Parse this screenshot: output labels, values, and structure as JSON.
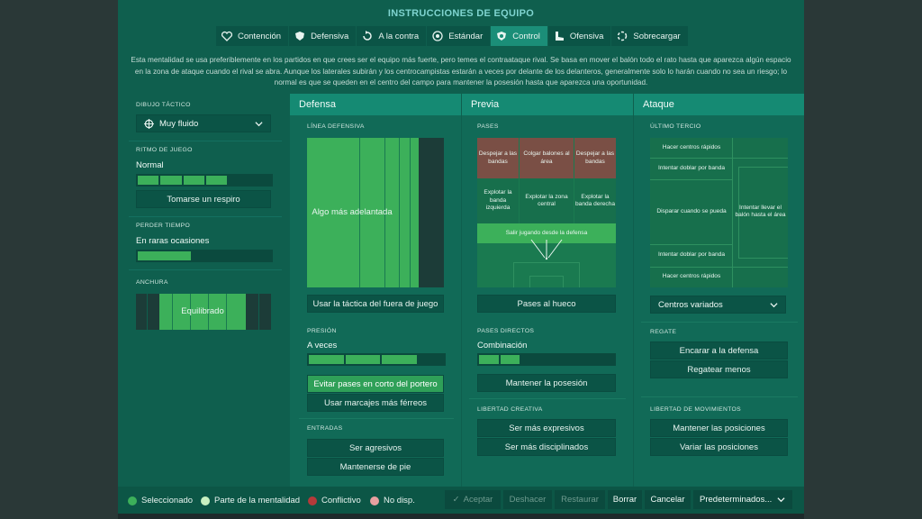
{
  "title": "INSTRUCCIONES DE EQUIPO",
  "tabs": [
    "Contención",
    "Defensiva",
    "A la contra",
    "Estándar",
    "Control",
    "Ofensiva",
    "Sobrecargar"
  ],
  "description": "Esta mentalidad se usa preferiblemente en los partidos en que crees ser el equipo más fuerte, pero temes el contraataque rival. Se basa en mover el balón todo el rato hasta que aparezca algún espacio en la zona de ataque cuando el rival se abra. Aunque los laterales subirán y los centrocampistas estarán a veces por delante de los delanteros, generalmente solo lo harán cuando no sea un riesgo; lo normal es que se queden en el centro del campo para mantener la posesión hasta que aparezca una oportunidad.",
  "left": {
    "formation_label": "DIBUJO TÁCTICO",
    "formation_value": "Muy fluido",
    "tempo_label": "RITMO DE JUEGO",
    "tempo_value": "Normal",
    "tempo_level": 0.67,
    "tempo_button": "Tomarse un respiro",
    "timewasting_label": "PERDER TIEMPO",
    "timewasting_value": "En raras ocasiones",
    "timewasting_level": 0.4,
    "width_label": "ANCHURA",
    "width_value": "Equilibrado"
  },
  "defense": {
    "title": "Defensa",
    "line_label": "LÍNEA DEFENSIVA",
    "line_value": "Algo más adelantada",
    "offside_button": "Usar la táctica del fuera de juego",
    "press_label": "PRESIÓN",
    "press_value": "A veces",
    "press_level": 0.8,
    "press_btn1": "Evitar pases en corto del portero",
    "press_btn2": "Usar marcajes más férreos",
    "tackle_label": "ENTRADAS",
    "tackle_btn1": "Ser agresivos",
    "tackle_btn2": "Mantenerse de pie"
  },
  "buildup": {
    "title": "Previa",
    "passes_label": "PASES",
    "zones": [
      "Despejar a las bandas",
      "Colgar balones al área",
      "Despejar a las bandas",
      "Explotar la banda izquierda",
      "Explotar la zona central",
      "Explotar la banda derecha",
      "Salir jugando desde la defensa"
    ],
    "through_button": "Pases al hueco",
    "direct_label": "PASES DIRECTOS",
    "direct_value": "Combinación",
    "direct_level": 0.3,
    "possession_button": "Mantener la posesión",
    "creative_label": "LIBERTAD CREATIVA",
    "creative_btn1": "Ser más expresivos",
    "creative_btn2": "Ser más disciplinados"
  },
  "attack": {
    "title": "Ataque",
    "third_label": "ÚLTIMO TERCIO",
    "zones": [
      "Hacer centros rápidos",
      "Intentar doblar por banda",
      "Disparar cuando se pueda",
      "Intentar llevar el balón hasta el área",
      "Intentar doblar por banda",
      "Hacer centros rápidos"
    ],
    "crossing_value": "Centros variados",
    "dribble_label": "REGATE",
    "dribble_btn1": "Encarar a la defensa",
    "dribble_btn2": "Regatear menos",
    "movement_label": "LIBERTAD DE MOVIMIENTOS",
    "movement_btn1": "Mantener las posiciones",
    "movement_btn2": "Variar las posiciones"
  },
  "legend": [
    {
      "label": "Seleccionado",
      "color": "#3cb05a"
    },
    {
      "label": "Parte de la mentalidad",
      "color": "#c8f0c0"
    },
    {
      "label": "Conflictivo",
      "color": "#b43a3a"
    },
    {
      "label": "No disp.",
      "color": "#e8a0a0"
    }
  ],
  "footer": {
    "accept": "Aceptar",
    "undo": "Deshacer",
    "restore": "Restaurar",
    "delete": "Borrar",
    "cancel": "Cancelar",
    "presets": "Predeterminados..."
  }
}
